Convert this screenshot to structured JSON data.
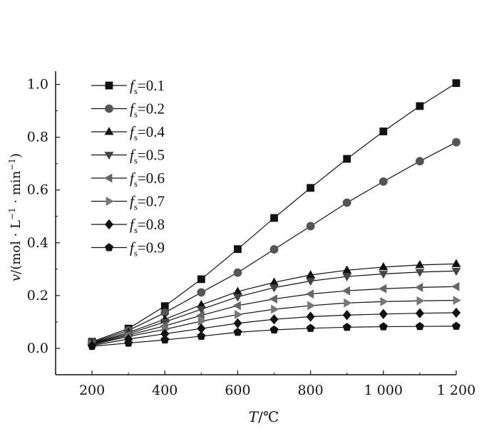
{
  "chart_data": {
    "type": "line",
    "title": "",
    "xlabel": "T/℃",
    "ylabel": "v/(mol · L⁻¹ · min⁻¹)",
    "x": [
      200,
      300,
      400,
      500,
      600,
      700,
      800,
      900,
      1000,
      1100,
      1200
    ],
    "xlim": [
      100,
      1200
    ],
    "ylim": [
      -0.1,
      1.0
    ],
    "xticks": [
      200,
      400,
      600,
      800,
      1000,
      1200
    ],
    "xtick_labels": [
      "200",
      "400",
      "600",
      "800",
      "1 000",
      "1 200"
    ],
    "yticks": [
      0.0,
      0.2,
      0.4,
      0.6,
      0.8,
      1.0
    ],
    "ytick_labels": [
      "0.0",
      "0.2",
      "0.4",
      "0.6",
      "0.8",
      "1.0"
    ],
    "grid": false,
    "legend_position": "top-left",
    "series": [
      {
        "name": "fs=0.1",
        "marker": "square",
        "color": "#111111",
        "values": [
          0.025,
          0.075,
          0.16,
          0.262,
          0.376,
          0.494,
          0.608,
          0.718,
          0.822,
          0.918,
          1.005
        ]
      },
      {
        "name": "fs=0.2",
        "marker": "circle",
        "color": "#555555",
        "values": [
          0.022,
          0.068,
          0.135,
          0.212,
          0.287,
          0.375,
          0.463,
          0.552,
          0.632,
          0.709,
          0.781
        ]
      },
      {
        "name": "fs=0.4",
        "marker": "triangle-up",
        "color": "#111111",
        "values": [
          0.02,
          0.06,
          0.11,
          0.165,
          0.215,
          0.25,
          0.278,
          0.296,
          0.308,
          0.316,
          0.32
        ]
      },
      {
        "name": "fs=0.5",
        "marker": "triangle-down",
        "color": "#444444",
        "values": [
          0.018,
          0.055,
          0.1,
          0.148,
          0.195,
          0.23,
          0.255,
          0.272,
          0.282,
          0.289,
          0.293
        ]
      },
      {
        "name": "fs=0.6",
        "marker": "triangle-left",
        "color": "#666666",
        "values": [
          0.016,
          0.05,
          0.085,
          0.125,
          0.162,
          0.187,
          0.206,
          0.218,
          0.226,
          0.231,
          0.234
        ]
      },
      {
        "name": "fs=0.7",
        "marker": "triangle-right",
        "color": "#777777",
        "values": [
          0.014,
          0.045,
          0.072,
          0.103,
          0.128,
          0.148,
          0.162,
          0.172,
          0.177,
          0.18,
          0.182
        ]
      },
      {
        "name": "fs=0.8",
        "marker": "diamond",
        "color": "#111111",
        "values": [
          0.011,
          0.035,
          0.055,
          0.075,
          0.095,
          0.11,
          0.12,
          0.126,
          0.13,
          0.133,
          0.135
        ]
      },
      {
        "name": "fs=0.9",
        "marker": "pentagon",
        "color": "#111111",
        "values": [
          0.008,
          0.02,
          0.032,
          0.046,
          0.061,
          0.07,
          0.076,
          0.08,
          0.082,
          0.083,
          0.084
        ]
      }
    ]
  },
  "legend": {
    "labels": [
      {
        "main": "f",
        "sub": "s",
        "rest": "=0.1"
      },
      {
        "main": "f",
        "sub": "s",
        "rest": "=0.2"
      },
      {
        "main": "f",
        "sub": "s",
        "rest": "=0.4"
      },
      {
        "main": "f",
        "sub": "s",
        "rest": "=0.5"
      },
      {
        "main": "f",
        "sub": "s",
        "rest": "=0.6"
      },
      {
        "main": "f",
        "sub": "s",
        "rest": "=0.7"
      },
      {
        "main": "f",
        "sub": "s",
        "rest": "=0.8"
      },
      {
        "main": "f",
        "sub": "s",
        "rest": "=0.9"
      }
    ]
  },
  "axes": {
    "x_label_var": "T",
    "x_label_unit": "/℃",
    "y_label_var": "v",
    "y_label_rest_1": "/(mol · L",
    "y_label_sup_1": "−1",
    "y_label_rest_2": " · min",
    "y_label_sup_2": "−1",
    "y_label_rest_3": ")"
  }
}
